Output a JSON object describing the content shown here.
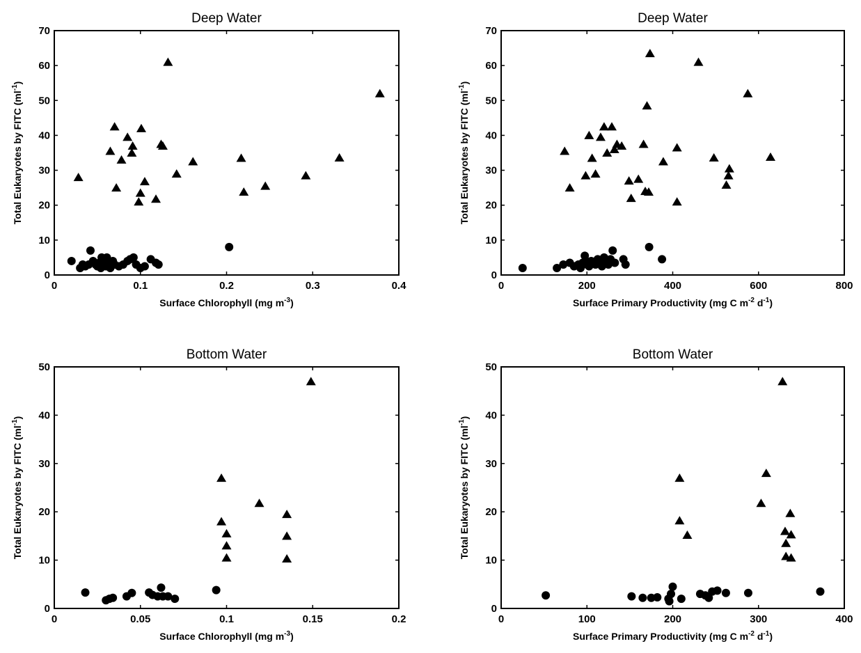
{
  "chart_data": [
    {
      "type": "scatter",
      "title": "Deep Water",
      "xlabel": {
        "before": "Surface Chlorophyll (mg m",
        "sup": "-3",
        "after": ")"
      },
      "ylabel": {
        "before": "Total Eukaryotes by FITC (ml",
        "sup": "-1",
        "after": ")"
      },
      "xlim": [
        0,
        0.4
      ],
      "ylim": [
        0,
        70
      ],
      "xticks": [
        "0",
        "0.1",
        "0.2",
        "0.3",
        "0.4"
      ],
      "yticks": [
        "0",
        "10",
        "20",
        "30",
        "40",
        "50",
        "60",
        "70"
      ],
      "grid": false,
      "series": [
        {
          "marker": "triangle",
          "points": [
            [
              0.028,
              28
            ],
            [
              0.065,
              35.5
            ],
            [
              0.07,
              42.5
            ],
            [
              0.072,
              25
            ],
            [
              0.078,
              33
            ],
            [
              0.085,
              39.5
            ],
            [
              0.09,
              35
            ],
            [
              0.091,
              37
            ],
            [
              0.098,
              21
            ],
            [
              0.1,
              23.5
            ],
            [
              0.101,
              42
            ],
            [
              0.105,
              26.8
            ],
            [
              0.118,
              21.8
            ],
            [
              0.124,
              37.5
            ],
            [
              0.126,
              37
            ],
            [
              0.132,
              61
            ],
            [
              0.142,
              29
            ],
            [
              0.161,
              32.5
            ],
            [
              0.217,
              33.5
            ],
            [
              0.22,
              23.8
            ],
            [
              0.245,
              25.5
            ],
            [
              0.292,
              28.5
            ],
            [
              0.331,
              33.6
            ],
            [
              0.378,
              52
            ]
          ]
        },
        {
          "marker": "circle",
          "points": [
            [
              0.02,
              4
            ],
            [
              0.03,
              2
            ],
            [
              0.033,
              3
            ],
            [
              0.036,
              2.5
            ],
            [
              0.04,
              3
            ],
            [
              0.042,
              7
            ],
            [
              0.045,
              4
            ],
            [
              0.048,
              3
            ],
            [
              0.05,
              2.5
            ],
            [
              0.052,
              3.5
            ],
            [
              0.054,
              2
            ],
            [
              0.055,
              5
            ],
            [
              0.057,
              4
            ],
            [
              0.058,
              3
            ],
            [
              0.06,
              2.5
            ],
            [
              0.061,
              5
            ],
            [
              0.063,
              3.5
            ],
            [
              0.065,
              2
            ],
            [
              0.068,
              4
            ],
            [
              0.07,
              3
            ],
            [
              0.075,
              2.5
            ],
            [
              0.08,
              3
            ],
            [
              0.085,
              4
            ],
            [
              0.088,
              4.5
            ],
            [
              0.092,
              5
            ],
            [
              0.095,
              3
            ],
            [
              0.1,
              2
            ],
            [
              0.105,
              2.5
            ],
            [
              0.112,
              4.5
            ],
            [
              0.118,
              3.5
            ],
            [
              0.121,
              3
            ],
            [
              0.203,
              8
            ]
          ]
        }
      ]
    },
    {
      "type": "scatter",
      "title": "Deep Water",
      "xlabel": {
        "before": "Surface Primary Productivity (mg C m",
        "sup": "-2",
        "mid": " d",
        "sup2": "-1",
        "after": ")"
      },
      "ylabel": {
        "before": "Total Eukaryotes by FITC (ml",
        "sup": "-1",
        "after": ")"
      },
      "xlim": [
        0,
        800
      ],
      "ylim": [
        0,
        70
      ],
      "xticks": [
        "0",
        "200",
        "400",
        "600",
        "800"
      ],
      "yticks": [
        "0",
        "10",
        "20",
        "30",
        "40",
        "50",
        "60",
        "70"
      ],
      "grid": false,
      "series": [
        {
          "marker": "triangle",
          "points": [
            [
              148,
              35.5
            ],
            [
              160,
              25
            ],
            [
              197,
              28.5
            ],
            [
              205,
              40
            ],
            [
              212,
              33.5
            ],
            [
              220,
              29
            ],
            [
              232,
              39.5
            ],
            [
              240,
              42.5
            ],
            [
              247,
              35
            ],
            [
              258,
              42.5
            ],
            [
              264,
              36
            ],
            [
              270,
              37.5
            ],
            [
              281,
              37
            ],
            [
              298,
              27
            ],
            [
              303,
              22
            ],
            [
              320,
              27.5
            ],
            [
              332,
              37.5
            ],
            [
              336,
              24
            ],
            [
              340,
              48.5
            ],
            [
              344,
              23.8
            ],
            [
              347,
              63.5
            ],
            [
              378,
              32.5
            ],
            [
              410,
              36.5
            ],
            [
              410,
              21
            ],
            [
              460,
              61
            ],
            [
              496,
              33.6
            ],
            [
              525,
              25.8
            ],
            [
              530,
              28.5
            ],
            [
              532,
              30.5
            ],
            [
              575,
              52
            ],
            [
              628,
              33.8
            ]
          ]
        },
        {
          "marker": "circle",
          "points": [
            [
              50,
              2
            ],
            [
              130,
              2
            ],
            [
              145,
              3
            ],
            [
              160,
              3.5
            ],
            [
              170,
              2.5
            ],
            [
              180,
              3
            ],
            [
              185,
              2
            ],
            [
              190,
              3.5
            ],
            [
              195,
              5.5
            ],
            [
              198,
              4
            ],
            [
              200,
              3
            ],
            [
              205,
              2.5
            ],
            [
              210,
              4
            ],
            [
              215,
              3.5
            ],
            [
              220,
              3
            ],
            [
              225,
              4.5
            ],
            [
              230,
              3.5
            ],
            [
              235,
              2.5
            ],
            [
              240,
              5
            ],
            [
              245,
              4
            ],
            [
              250,
              3
            ],
            [
              255,
              4.5
            ],
            [
              260,
              7
            ],
            [
              265,
              3.5
            ],
            [
              285,
              4.5
            ],
            [
              290,
              3
            ],
            [
              345,
              8
            ],
            [
              375,
              4.5
            ]
          ]
        }
      ]
    },
    {
      "type": "scatter",
      "title": "Bottom Water",
      "xlabel": {
        "before": "Surface Chlorophyll (mg m",
        "sup": "-3",
        "after": ")"
      },
      "ylabel": {
        "before": "Total Eukaryotes by FITC (ml",
        "sup": "-1",
        "after": ")"
      },
      "xlim": [
        0,
        0.2
      ],
      "ylim": [
        0,
        50
      ],
      "xticks": [
        "0",
        "0.05",
        "0.1",
        "0.15",
        "0.2"
      ],
      "yticks": [
        "0",
        "10",
        "20",
        "30",
        "40",
        "50"
      ],
      "grid": false,
      "series": [
        {
          "marker": "triangle",
          "points": [
            [
              0.097,
              27
            ],
            [
              0.097,
              18
            ],
            [
              0.1,
              15.5
            ],
            [
              0.1,
              13
            ],
            [
              0.1,
              10.5
            ],
            [
              0.119,
              21.8
            ],
            [
              0.135,
              19.5
            ],
            [
              0.135,
              15
            ],
            [
              0.135,
              10.3
            ],
            [
              0.149,
              47
            ]
          ]
        },
        {
          "marker": "circle",
          "points": [
            [
              0.018,
              3.3
            ],
            [
              0.03,
              1.7
            ],
            [
              0.032,
              2
            ],
            [
              0.034,
              2.2
            ],
            [
              0.042,
              2.5
            ],
            [
              0.045,
              3.2
            ],
            [
              0.055,
              3.3
            ],
            [
              0.057,
              2.8
            ],
            [
              0.06,
              2.5
            ],
            [
              0.062,
              4.3
            ],
            [
              0.063,
              2.5
            ],
            [
              0.066,
              2.5
            ],
            [
              0.07,
              2
            ],
            [
              0.094,
              3.8
            ]
          ]
        }
      ]
    },
    {
      "type": "scatter",
      "title": "Bottom Water",
      "xlabel": {
        "before": "Surface Primary Productivity (mg C m",
        "sup": "-2",
        "mid": " d",
        "sup2": "-1",
        "after": ")"
      },
      "ylabel": {
        "before": "Total Eukaryotes by FITC (ml",
        "sup": "-1",
        "after": ")"
      },
      "xlim": [
        0,
        400
      ],
      "ylim": [
        0,
        50
      ],
      "xticks": [
        "0",
        "100",
        "200",
        "300",
        "400"
      ],
      "yticks": [
        "0",
        "10",
        "20",
        "30",
        "40",
        "50"
      ],
      "grid": false,
      "series": [
        {
          "marker": "triangle",
          "points": [
            [
              208,
              27
            ],
            [
              208,
              18.2
            ],
            [
              217,
              15.2
            ],
            [
              303,
              21.8
            ],
            [
              309,
              28
            ],
            [
              328,
              47
            ],
            [
              331,
              16
            ],
            [
              332,
              13.5
            ],
            [
              332,
              10.8
            ],
            [
              337,
              19.7
            ],
            [
              338,
              15.3
            ],
            [
              338,
              10.5
            ]
          ]
        },
        {
          "marker": "circle",
          "points": [
            [
              52,
              2.7
            ],
            [
              152,
              2.5
            ],
            [
              165,
              2.2
            ],
            [
              175,
              2.2
            ],
            [
              182,
              2.3
            ],
            [
              195,
              2
            ],
            [
              196,
              1.5
            ],
            [
              198,
              3
            ],
            [
              200,
              4.5
            ],
            [
              210,
              2
            ],
            [
              232,
              3
            ],
            [
              238,
              2.7
            ],
            [
              242,
              2.2
            ],
            [
              246,
              3.5
            ],
            [
              252,
              3.7
            ],
            [
              262,
              3.2
            ],
            [
              288,
              3.2
            ],
            [
              372,
              3.5
            ]
          ]
        }
      ]
    }
  ]
}
